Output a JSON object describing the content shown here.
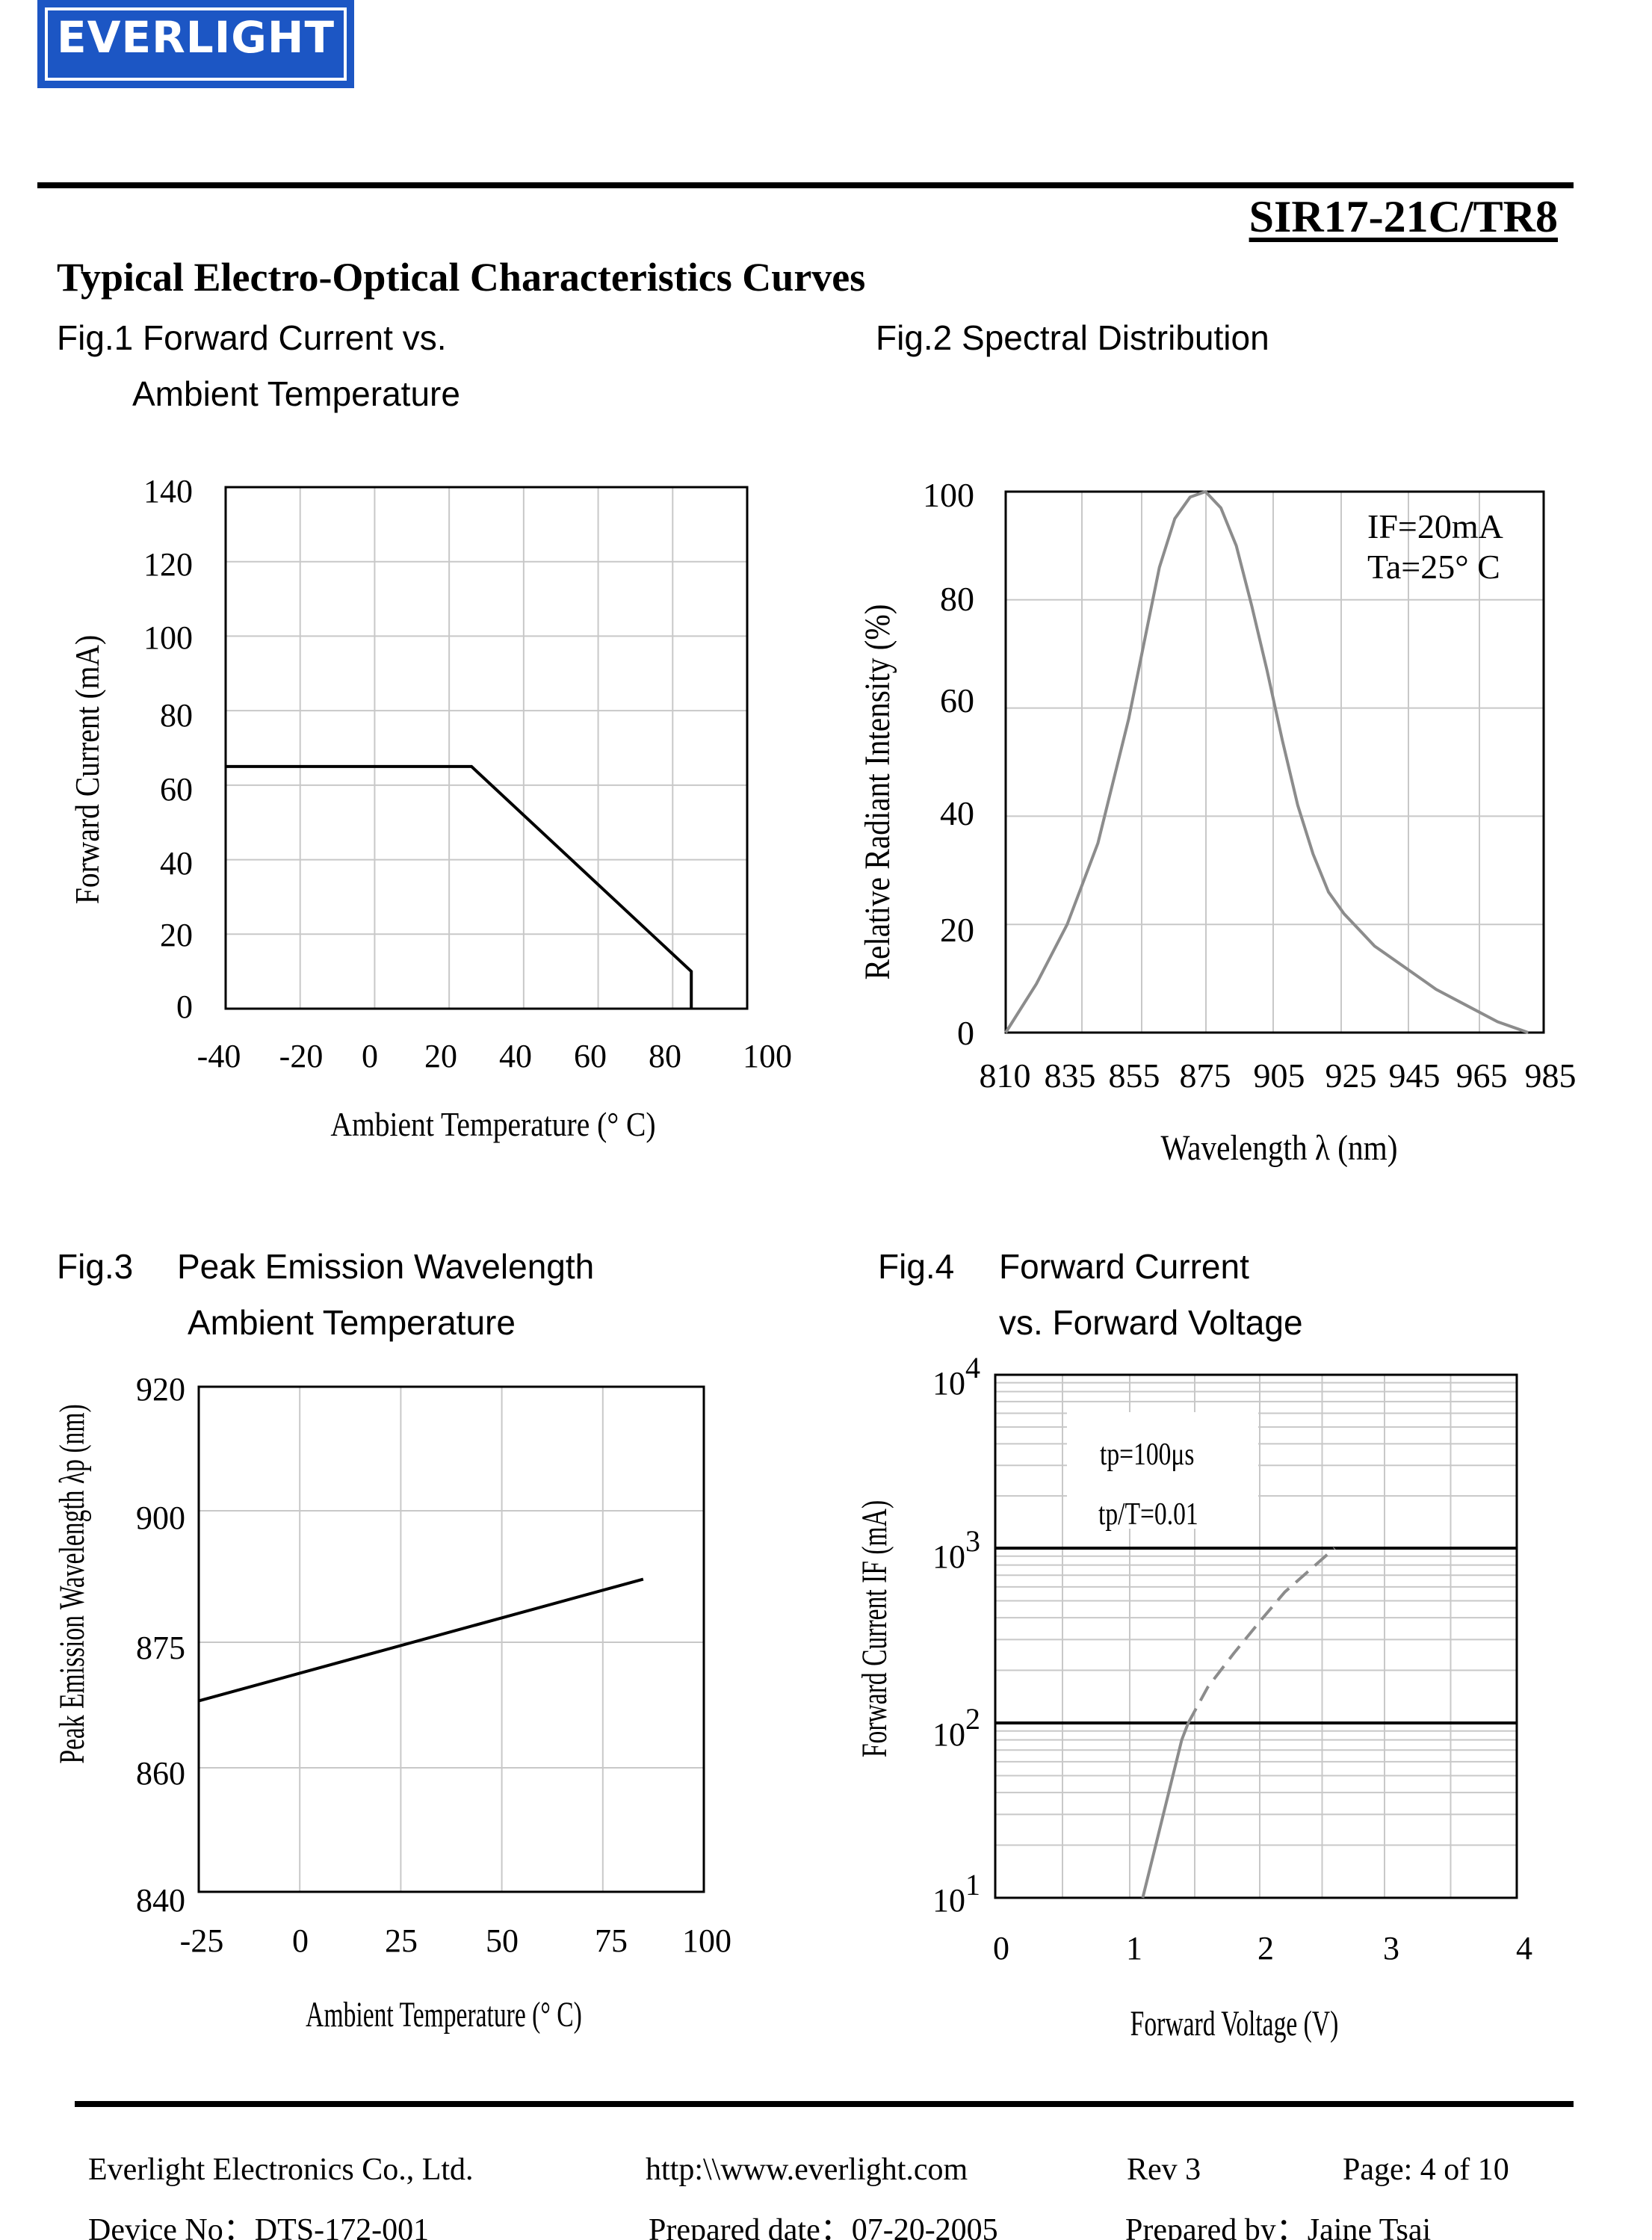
{
  "header": {
    "logo_text": "EVERLIGHT",
    "part_number": "SIR17-21C/TR8",
    "section_title": "Typical Electro-Optical Characteristics Curves"
  },
  "figures": {
    "fig1": {
      "title_line1": "Fig.1 Forward Current vs.",
      "title_line2": "Ambient Temperature"
    },
    "fig2": {
      "title_line1": "Fig.2 Spectral Distribution"
    },
    "fig3": {
      "title_prefix": "Fig.3",
      "title_line1": "Peak Emission Wavelength",
      "title_line2": "Ambient Temperature"
    },
    "fig4": {
      "title_prefix": "Fig.4",
      "title_line1": "Forward Current",
      "title_line2": "vs. Forward Voltage"
    }
  },
  "chart_data": [
    {
      "id": "fig1",
      "type": "line",
      "xlabel": "Ambient Temperature (° C)",
      "ylabel": "Forward Current (mA)",
      "xlim": [
        -40,
        100
      ],
      "ylim": [
        0,
        140
      ],
      "xticks": [
        "-40",
        "-20",
        "0",
        "20",
        "40",
        "60",
        "80",
        "100"
      ],
      "yticks": [
        "0",
        "20",
        "40",
        "60",
        "80",
        "100",
        "120",
        "140"
      ],
      "grid": true,
      "series": [
        {
          "x": [
            -40,
            26,
            85,
            85
          ],
          "y": [
            65,
            65,
            10,
            0
          ]
        }
      ]
    },
    {
      "id": "fig2",
      "type": "line",
      "xlabel": "Wavelength λ (nm)",
      "ylabel": "Relative Radiant Intensity (%)",
      "xlim": [
        810,
        985
      ],
      "ylim": [
        0,
        100
      ],
      "xticks": [
        "810",
        "835",
        "855",
        "875",
        "905",
        "925",
        "945",
        "965",
        "985"
      ],
      "yticks": [
        "0",
        "20",
        "40",
        "60",
        "80",
        "100"
      ],
      "grid": true,
      "annotations": [
        "IF=20mA",
        "Ta=25° C"
      ],
      "series": [
        {
          "x": [
            810,
            820,
            830,
            840,
            850,
            855,
            860,
            865,
            870,
            875,
            880,
            885,
            890,
            895,
            900,
            905,
            910,
            915,
            920,
            925,
            930,
            940,
            950,
            960,
            970,
            980
          ],
          "y": [
            0,
            9,
            20,
            35,
            58,
            72,
            86,
            95,
            99,
            100,
            97,
            90,
            79,
            67,
            54,
            42,
            33,
            26,
            22,
            19,
            16,
            12,
            8,
            5,
            2,
            0
          ]
        }
      ]
    },
    {
      "id": "fig3",
      "type": "line",
      "xlabel": "Ambient Temperature (° C)",
      "ylabel": "Peak Emission Wavelength λp (nm)",
      "xticks": [
        "-25",
        "0",
        "25",
        "50",
        "75",
        "100"
      ],
      "yticks": [
        "840",
        "860",
        "875",
        "900",
        "920"
      ],
      "grid": true,
      "series": [
        {
          "x": [
            -25,
            85
          ],
          "y": [
            868,
            887
          ]
        }
      ]
    },
    {
      "id": "fig4",
      "type": "line",
      "xlabel": "Forward Voltage (V)",
      "ylabel": "Forward Current IF (mA)",
      "xlim": [
        0,
        4
      ],
      "ylim": [
        10,
        10000
      ],
      "yscale": "log",
      "xticks": [
        "0",
        "1",
        "2",
        "3",
        "4"
      ],
      "ytick_bases": [
        "10",
        "10",
        "10",
        "10"
      ],
      "ytick_exponents": [
        "1",
        "2",
        "3",
        "4"
      ],
      "grid": true,
      "annotations": [
        "tp=100μs",
        "tp/T=0.01"
      ],
      "series": [
        {
          "style": "solid",
          "x": [
            1.1,
            1.2,
            1.3,
            1.4,
            1.45
          ],
          "y": [
            10,
            20,
            40,
            80,
            100
          ]
        },
        {
          "style": "dashed",
          "x": [
            1.45,
            1.6,
            1.8,
            2.0,
            2.2,
            2.6
          ],
          "y": [
            100,
            160,
            250,
            380,
            560,
            1000
          ]
        }
      ]
    }
  ],
  "footer": {
    "company": "Everlight Electronics Co., Ltd.",
    "url": "http:\\\\www.everlight.com",
    "rev": "Rev 3",
    "page": "Page: 4 of 10",
    "device_no": "Device No：DTS-172-001",
    "prepared_date": "Prepared date：07-20-2005",
    "prepared_by": "Prepared by：Jaine Tsai"
  }
}
